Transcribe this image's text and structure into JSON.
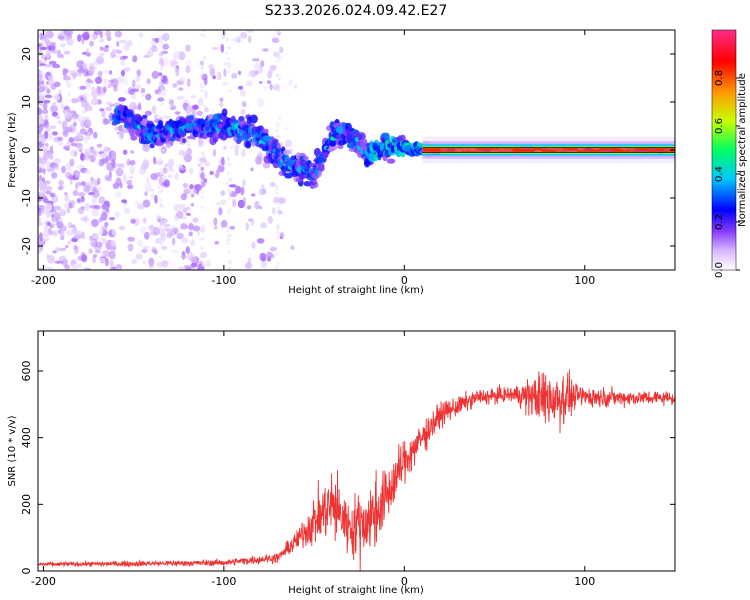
{
  "figure_title": "S233.2026.024.09.42.E27",
  "chart_data": [
    {
      "type": "heatmap",
      "name": "spectrogram",
      "title": "S233.2026.024.09.42.E27",
      "xlabel": "Height of straight line (km)",
      "ylabel": "Frequency (Hz)",
      "xlim": [
        -203,
        150
      ],
      "ylim": [
        -25,
        25
      ],
      "xticks": [
        -200,
        -100,
        0,
        100
      ],
      "xtick_labels": [
        "-200",
        "-100",
        "0",
        "100"
      ],
      "yticks": [
        -20,
        -10,
        0,
        10,
        20
      ],
      "ytick_labels": [
        "-20",
        "-10",
        "0",
        "10",
        "20"
      ],
      "colorbar": {
        "label": "Normalized spectral amplitude",
        "range": [
          0,
          1
        ],
        "ticks": [
          0.0,
          0.2,
          0.4,
          0.6,
          0.8
        ],
        "tick_labels": [
          "0.0",
          "0.2",
          "0.4",
          "0.6",
          "0.8"
        ],
        "colormap": [
          "#ffffff",
          "#d8b8ff",
          "#8a3cff",
          "#0000ff",
          "#00c8ff",
          "#00ff60",
          "#c8ff00",
          "#ff9900",
          "#ff0000",
          "#ff2d8a"
        ]
      },
      "ridge_path": [
        {
          "x": -155,
          "y": 7
        },
        {
          "x": -140,
          "y": 3
        },
        {
          "x": -120,
          "y": 5
        },
        {
          "x": -100,
          "y": 5
        },
        {
          "x": -80,
          "y": 3
        },
        {
          "x": -65,
          "y": -3
        },
        {
          "x": -50,
          "y": -5
        },
        {
          "x": -38,
          "y": 4
        },
        {
          "x": -30,
          "y": 3
        },
        {
          "x": -20,
          "y": -1
        },
        {
          "x": -10,
          "y": 1
        },
        {
          "x": 0,
          "y": 0.5
        },
        {
          "x": 10,
          "y": 0.3
        },
        {
          "x": 150,
          "y": 0
        }
      ],
      "carrier_line": {
        "y": 0,
        "from_x": 10,
        "to_x": 150
      }
    },
    {
      "type": "line",
      "name": "snr",
      "xlabel": "Height of straight line (km)",
      "ylabel": "SNR (10 * v/v)",
      "xlim": [
        -203,
        150
      ],
      "ylim": [
        0,
        720
      ],
      "xticks": [
        -200,
        -100,
        0,
        100
      ],
      "xtick_labels": [
        "-200",
        "-100",
        "0",
        "100"
      ],
      "yticks": [
        0,
        200,
        400,
        600
      ],
      "ytick_labels": [
        "0",
        "200",
        "400",
        "600"
      ],
      "line_color": "#ee3333",
      "envelope": [
        {
          "x": -203,
          "mean": 20,
          "noise": 10
        },
        {
          "x": -150,
          "mean": 22,
          "noise": 14
        },
        {
          "x": -100,
          "mean": 25,
          "noise": 16
        },
        {
          "x": -70,
          "mean": 40,
          "noise": 25
        },
        {
          "x": -60,
          "mean": 90,
          "noise": 50
        },
        {
          "x": -50,
          "mean": 150,
          "noise": 120
        },
        {
          "x": -40,
          "mean": 200,
          "noise": 180
        },
        {
          "x": -30,
          "mean": 130,
          "noise": 140
        },
        {
          "x": -20,
          "mean": 150,
          "noise": 200
        },
        {
          "x": -10,
          "mean": 220,
          "noise": 150
        },
        {
          "x": 0,
          "mean": 330,
          "noise": 110
        },
        {
          "x": 10,
          "mean": 400,
          "noise": 90
        },
        {
          "x": 20,
          "mean": 470,
          "noise": 60
        },
        {
          "x": 40,
          "mean": 520,
          "noise": 40
        },
        {
          "x": 60,
          "mean": 530,
          "noise": 40
        },
        {
          "x": 75,
          "mean": 520,
          "noise": 130
        },
        {
          "x": 85,
          "mean": 520,
          "noise": 180
        },
        {
          "x": 95,
          "mean": 525,
          "noise": 60
        },
        {
          "x": 120,
          "mean": 520,
          "noise": 40
        },
        {
          "x": 150,
          "mean": 520,
          "noise": 35
        }
      ]
    }
  ]
}
